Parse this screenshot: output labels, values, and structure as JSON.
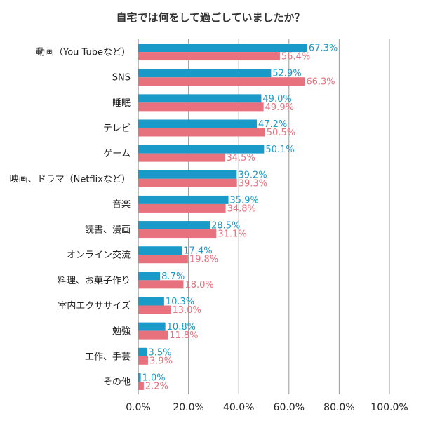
{
  "chart_data": {
    "type": "bar",
    "orientation": "horizontal",
    "title": "自宅では何をして過ごしていましたか？",
    "categories": [
      "動画（You Tubeなど）",
      "SNS",
      "睡眠",
      "テレビ",
      "ゲーム",
      "映画、ドラマ（Netflixなど）",
      "音楽",
      "読書、漫画",
      "オンライン交流",
      "料理、お菓子作り",
      "室内エクササイズ",
      "勉強",
      "工作、手芸",
      "その他"
    ],
    "series": [
      {
        "color": "#1a9ac8",
        "values": [
          67.3,
          52.9,
          49.0,
          47.2,
          50.1,
          39.2,
          35.9,
          28.5,
          17.4,
          8.7,
          10.3,
          10.8,
          3.5,
          1.0
        ],
        "labels": [
          "67.3%",
          "52.9%",
          "49.0%",
          "47.2%",
          "50.1%",
          "39.2%",
          "35.9%",
          "28.5%",
          "17.4%",
          "8.7%",
          "10.3%",
          "10.8%",
          "3.5%",
          "1.0%"
        ]
      },
      {
        "color": "#e8717e",
        "values": [
          56.4,
          66.3,
          49.9,
          50.5,
          34.5,
          39.3,
          34.8,
          31.1,
          19.8,
          18.0,
          13.0,
          11.8,
          3.9,
          2.2
        ],
        "labels": [
          "56.4%",
          "66.3%",
          "49.9%",
          "50.5%",
          "34.5%",
          "39.3%",
          "34.8%",
          "31.1%",
          "19.8%",
          "18.0%",
          "13.0%",
          "11.8%",
          "3.9%",
          "2.2%"
        ]
      }
    ],
    "xlim": [
      0,
      100
    ],
    "xticks": [
      0,
      20,
      40,
      60,
      80,
      100
    ],
    "xtick_labels": [
      "0.0%",
      "20.0%",
      "40.0%",
      "60.0%",
      "80.0%",
      "100.0%"
    ],
    "grid": true,
    "legend": "none"
  }
}
